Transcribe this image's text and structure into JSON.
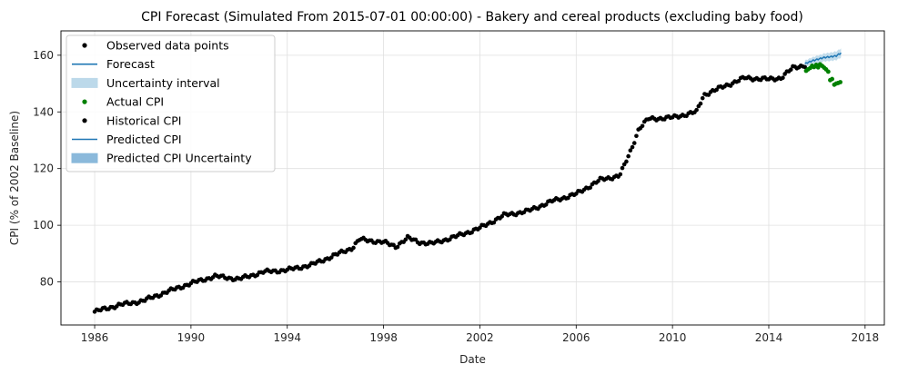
{
  "chart_data": {
    "type": "scatter",
    "title": "CPI Forecast (Simulated From 2015-07-01 00:00:00) - Bakery and cereal products (excluding baby food)",
    "xlabel": "Date",
    "ylabel": "CPI (% of 2002 Baseline)",
    "xlim": [
      1984.6,
      2018.8
    ],
    "ylim": [
      64.8,
      168.6
    ],
    "x_ticks": [
      "1986",
      "1990",
      "1994",
      "1998",
      "2002",
      "2006",
      "2010",
      "2014",
      "2018"
    ],
    "y_ticks": [
      "80",
      "100",
      "120",
      "140",
      "160"
    ],
    "grid": true,
    "legend_position": "top-left",
    "legend": [
      {
        "label": "Observed data points",
        "kind": "dot",
        "color": "#000000"
      },
      {
        "label": "Forecast",
        "kind": "line",
        "color": "#1f77b4"
      },
      {
        "label": "Uncertainty interval",
        "kind": "band",
        "color": "#bcd9ea"
      },
      {
        "label": "Actual CPI",
        "kind": "dot",
        "color": "#008000"
      },
      {
        "label": "Historical CPI",
        "kind": "dot",
        "color": "#000000"
      },
      {
        "label": "Predicted CPI",
        "kind": "line",
        "color": "#1f77b4"
      },
      {
        "label": "Predicted CPI Uncertainty",
        "kind": "band",
        "color": "#8bb9db"
      }
    ],
    "historical_anchors": [
      [
        1986.0,
        69.5
      ],
      [
        1987.0,
        71.8
      ],
      [
        1988.0,
        73.3
      ],
      [
        1989.0,
        76.5
      ],
      [
        1990.0,
        79.5
      ],
      [
        1991.0,
        82.0
      ],
      [
        1992.0,
        81.0
      ],
      [
        1993.0,
        83.5
      ],
      [
        1994.0,
        84.2
      ],
      [
        1995.0,
        86.0
      ],
      [
        1996.0,
        89.5
      ],
      [
        1996.7,
        92.0
      ],
      [
        1997.0,
        95.0
      ],
      [
        1998.0,
        94.0
      ],
      [
        1998.5,
        92.5
      ],
      [
        1999.0,
        95.5
      ],
      [
        1999.5,
        94.0
      ],
      [
        2000.0,
        93.5
      ],
      [
        2001.0,
        96.0
      ],
      [
        2002.0,
        99.0
      ],
      [
        2003.0,
        103.5
      ],
      [
        2004.0,
        105.0
      ],
      [
        2005.0,
        108.5
      ],
      [
        2006.0,
        111.0
      ],
      [
        2007.0,
        116.0
      ],
      [
        2007.8,
        117.5
      ],
      [
        2008.0,
        121.0
      ],
      [
        2008.3,
        127.0
      ],
      [
        2008.6,
        134.0
      ],
      [
        2009.0,
        137.5
      ],
      [
        2010.0,
        138.0
      ],
      [
        2011.0,
        140.0
      ],
      [
        2011.3,
        146.0
      ],
      [
        2012.0,
        148.5
      ],
      [
        2013.0,
        152.0
      ],
      [
        2014.0,
        151.5
      ],
      [
        2014.5,
        152.0
      ],
      [
        2015.0,
        155.5
      ],
      [
        2015.5,
        156.5
      ]
    ],
    "forecast_anchors": [
      [
        2015.5,
        157.0
      ],
      [
        2015.8,
        158.0
      ],
      [
        2016.0,
        158.5
      ],
      [
        2016.3,
        159.2
      ],
      [
        2016.6,
        159.5
      ],
      [
        2016.8,
        159.8
      ],
      [
        2017.0,
        160.8
      ]
    ],
    "uncertainty_halfwidth": 1.6,
    "actual_cpi": [
      [
        2015.55,
        154.5
      ],
      [
        2015.63,
        155.0
      ],
      [
        2015.72,
        155.5
      ],
      [
        2015.8,
        156.3
      ],
      [
        2015.88,
        155.8
      ],
      [
        2015.97,
        156.6
      ],
      [
        2016.05,
        155.7
      ],
      [
        2016.13,
        156.8
      ],
      [
        2016.22,
        156.2
      ],
      [
        2016.3,
        155.6
      ],
      [
        2016.38,
        155.0
      ],
      [
        2016.47,
        154.2
      ],
      [
        2016.55,
        151.2
      ],
      [
        2016.63,
        151.6
      ],
      [
        2016.72,
        149.6
      ],
      [
        2016.8,
        150.0
      ],
      [
        2016.88,
        150.2
      ],
      [
        2016.97,
        150.5
      ]
    ],
    "colors": {
      "historical": "#000000",
      "forecast": "#1f77b4",
      "uncertainty": "#bcd9ea",
      "actual": "#008000",
      "grid": "#e0e0e0"
    }
  }
}
